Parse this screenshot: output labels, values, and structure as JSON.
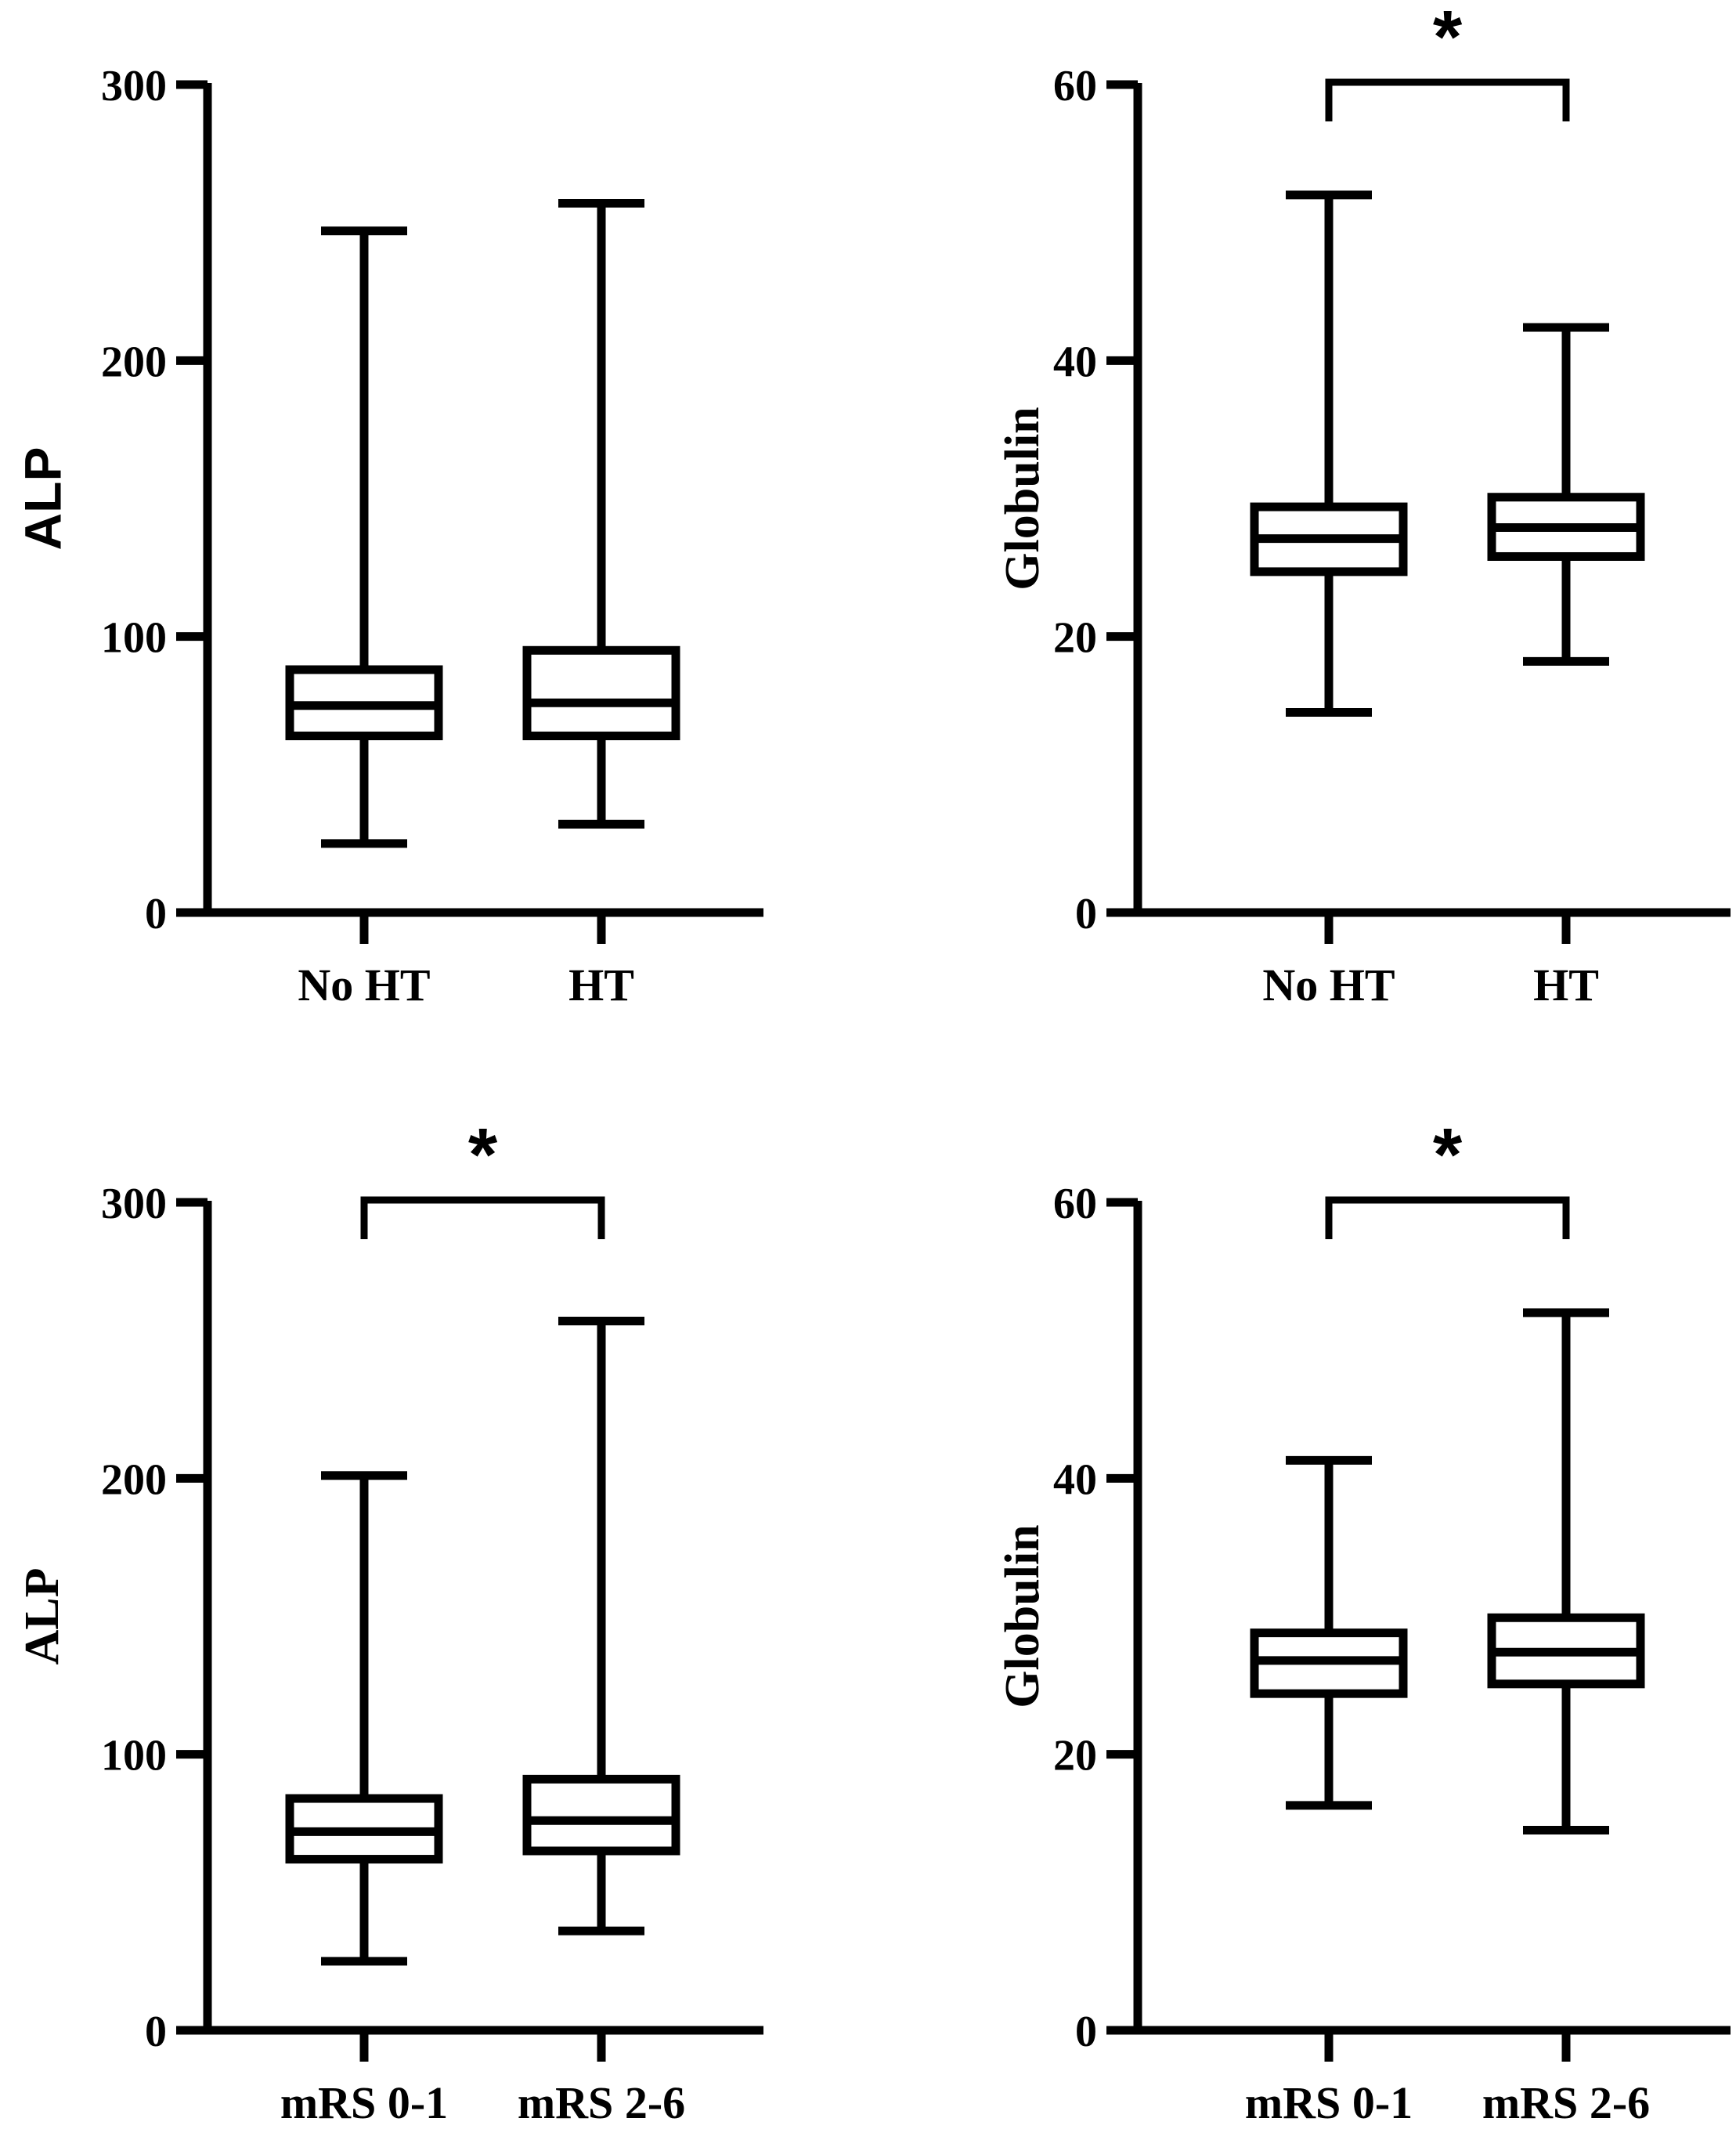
{
  "chart_data": [
    {
      "type": "box",
      "categories": [
        "No HT",
        "HT"
      ],
      "ylabel": "ALP",
      "ylim": [
        0,
        300
      ],
      "yticks": [
        "0",
        "100",
        "200",
        "300"
      ],
      "boxes": [
        {
          "category": "No HT",
          "min": 25,
          "q1": 64,
          "median": 75,
          "q3": 88,
          "max": 247
        },
        {
          "category": "HT",
          "min": 32,
          "q1": 64,
          "median": 76,
          "q3": 95,
          "max": 257
        }
      ],
      "significance": []
    },
    {
      "type": "box",
      "categories": [
        "No HT",
        "HT"
      ],
      "ylabel": "Globulin",
      "ylim": [
        0,
        60
      ],
      "yticks": [
        "0",
        "20",
        "40",
        "60"
      ],
      "boxes": [
        {
          "category": "No HT",
          "min": 14.5,
          "q1": 24.7,
          "median": 27.1,
          "q3": 29.4,
          "max": 52
        },
        {
          "category": "HT",
          "min": 18.2,
          "q1": 25.8,
          "median": 27.9,
          "q3": 30.1,
          "max": 42.4
        }
      ],
      "significance": [
        {
          "from": "No HT",
          "to": "HT",
          "label": "*"
        }
      ]
    },
    {
      "type": "box",
      "categories": [
        "mRS 0-1",
        "mRS 2-6"
      ],
      "ylabel": "ALP",
      "ylim": [
        0,
        300
      ],
      "yticks": [
        "0",
        "100",
        "200",
        "300"
      ],
      "boxes": [
        {
          "category": "mRS 0-1",
          "min": 25,
          "q1": 62,
          "median": 72,
          "q3": 84,
          "max": 201
        },
        {
          "category": "mRS 2-6",
          "min": 36,
          "q1": 65,
          "median": 76,
          "q3": 91,
          "max": 257
        }
      ],
      "significance": [
        {
          "from": "mRS 0-1",
          "to": "mRS 2-6",
          "label": "*"
        }
      ]
    },
    {
      "type": "box",
      "categories": [
        "mRS 0-1",
        "mRS 2-6"
      ],
      "ylabel": "Globulin",
      "ylim": [
        0,
        60
      ],
      "yticks": [
        "0",
        "20",
        "40",
        "60"
      ],
      "boxes": [
        {
          "category": "mRS 0-1",
          "min": 16.3,
          "q1": 24.4,
          "median": 26.8,
          "q3": 28.8,
          "max": 41.3
        },
        {
          "category": "mRS 2-6",
          "min": 14.5,
          "q1": 25.1,
          "median": 27.4,
          "q3": 29.9,
          "max": 52
        }
      ],
      "significance": [
        {
          "from": "mRS 0-1",
          "to": "mRS 2-6",
          "label": "*"
        }
      ]
    }
  ]
}
